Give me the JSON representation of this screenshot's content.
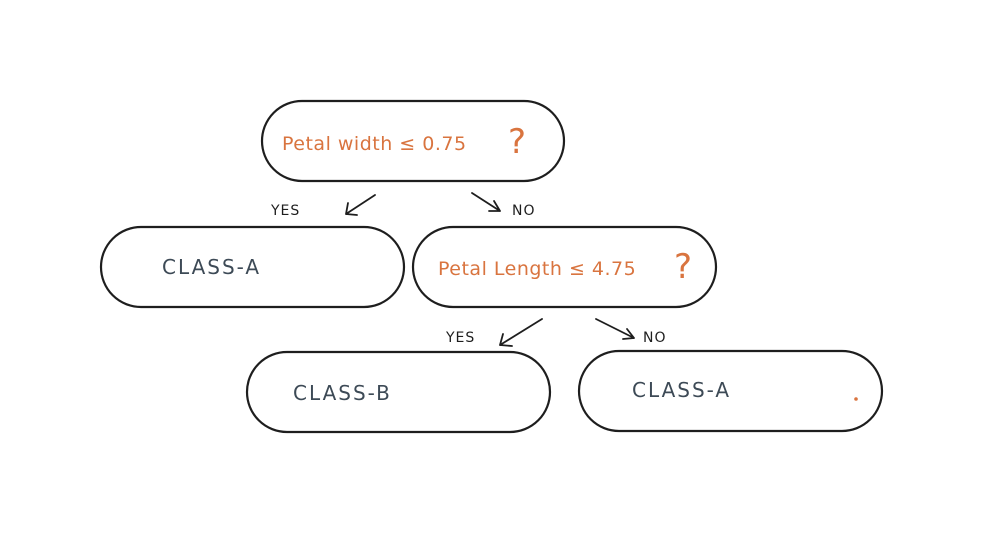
{
  "diagram": {
    "root": {
      "question": "Petal width ≤ 0.75",
      "question_mark": "?",
      "yes_label": "YES",
      "no_label": "NO"
    },
    "leaf_left": {
      "label": "CLASS-A"
    },
    "split_node": {
      "question": "Petal Length ≤ 4.75",
      "question_mark": "?",
      "yes_label": "YES",
      "no_label": "NO"
    },
    "leaf_bottom_left": {
      "label": "CLASS-B"
    },
    "leaf_bottom_right": {
      "label": "CLASS-A"
    }
  },
  "colors": {
    "question": "#d9743f",
    "leaf_text": "#3d4a56",
    "outline": "#1e1e1e"
  }
}
